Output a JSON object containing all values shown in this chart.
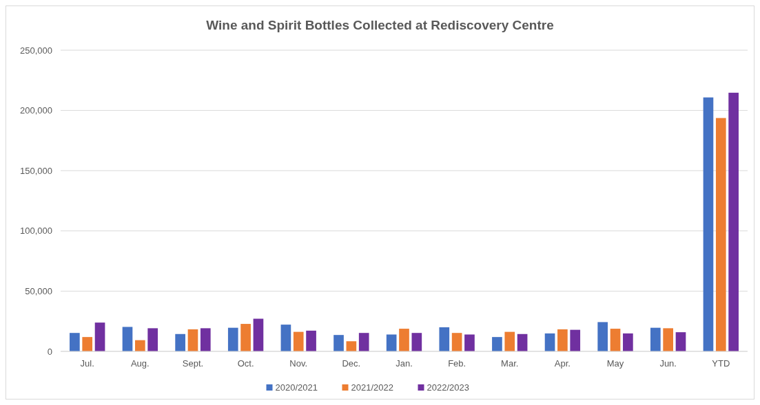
{
  "chart_data": {
    "type": "bar",
    "title": "Wine and Spirit Bottles Collected at Rediscovery Centre",
    "categories": [
      "Jul.",
      "Aug.",
      "Sept.",
      "Oct.",
      "Nov.",
      "Dec.",
      "Jan.",
      "Feb.",
      "Mar.",
      "Apr.",
      "May",
      "Jun.",
      "YTD"
    ],
    "series": [
      {
        "name": "2020/2021",
        "color": "#4472c4",
        "values": [
          15300,
          20300,
          14400,
          19600,
          22200,
          13600,
          14000,
          20000,
          11900,
          14900,
          24300,
          19600,
          210800
        ]
      },
      {
        "name": "2021/2022",
        "color": "#ed7d31",
        "values": [
          11900,
          9300,
          18300,
          22800,
          16200,
          8400,
          18800,
          15300,
          16200,
          18300,
          18800,
          19200,
          193700
        ]
      },
      {
        "name": "2022/2023",
        "color": "#7030a0",
        "values": [
          23900,
          19200,
          19200,
          27100,
          17200,
          15300,
          15300,
          14000,
          14400,
          17900,
          14900,
          15900,
          214700
        ]
      }
    ],
    "ylim": [
      0,
      250000
    ],
    "yticks": [
      {
        "value": 0,
        "label": "0"
      },
      {
        "value": 50000,
        "label": "50,000"
      },
      {
        "value": 100000,
        "label": "100,000"
      },
      {
        "value": 150000,
        "label": "150,000"
      },
      {
        "value": 200000,
        "label": "200,000"
      },
      {
        "value": 250000,
        "label": "250,000"
      }
    ],
    "grid": "y",
    "legend": "bottom"
  }
}
